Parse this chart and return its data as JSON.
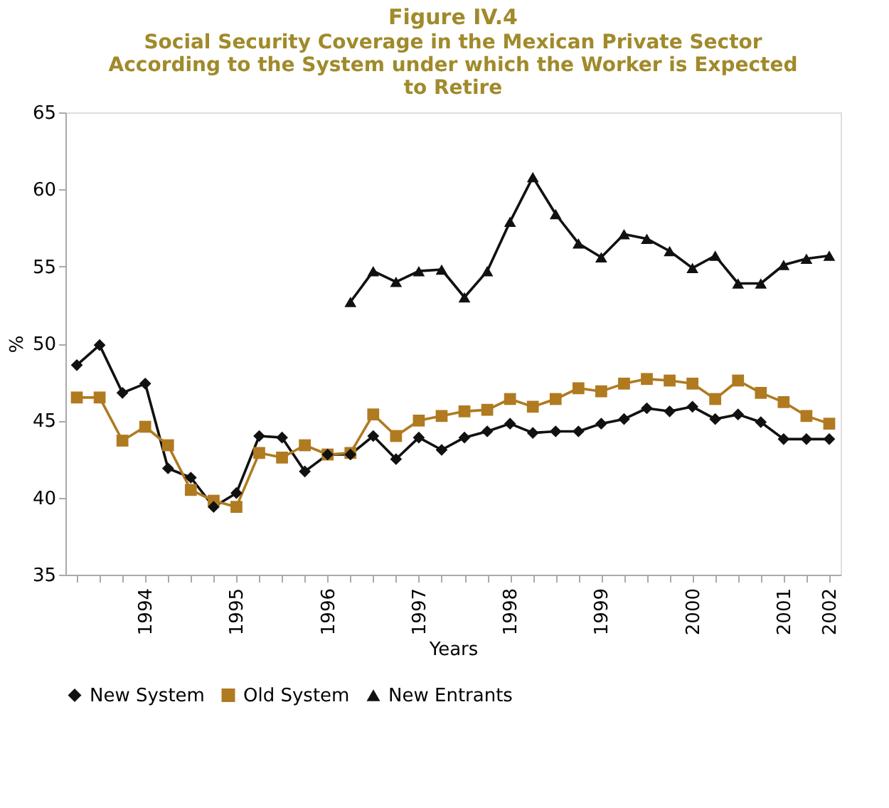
{
  "chart_data": {
    "type": "line",
    "title": "Figure IV.4",
    "subtitle": "Social Security Coverage in the Mexican Private Sector According to the System under which the Worker is Expected to Retire",
    "xlabel": "Years",
    "ylabel": "%",
    "categories": [
      null,
      null,
      null,
      "1994",
      null,
      null,
      null,
      "1995",
      null,
      null,
      null,
      "1996",
      null,
      null,
      null,
      "1997",
      null,
      null,
      null,
      "1998",
      null,
      null,
      null,
      "1999",
      null,
      null,
      null,
      "2000",
      null,
      null,
      null,
      "2001",
      null,
      "2002"
    ],
    "series": [
      {
        "name": "New System",
        "color": "#111111",
        "marker": "diamond",
        "values": [
          48.6,
          49.9,
          46.8,
          47.4,
          41.9,
          41.3,
          39.4,
          40.3,
          44.0,
          43.9,
          41.7,
          42.8,
          42.8,
          44.0,
          42.5,
          43.9,
          43.1,
          43.9,
          44.3,
          44.8,
          44.2,
          44.3,
          44.3,
          44.8,
          45.1,
          45.8,
          45.6,
          45.9,
          45.1,
          45.4,
          44.9,
          43.8,
          43.8,
          43.8
        ]
      },
      {
        "name": "Old System",
        "color": "#b07a20",
        "marker": "square",
        "values": [
          46.5,
          46.5,
          43.7,
          44.6,
          43.4,
          40.5,
          39.8,
          39.4,
          42.9,
          42.6,
          43.4,
          42.8,
          42.9,
          45.4,
          44.0,
          45.0,
          45.3,
          45.6,
          45.7,
          46.4,
          45.9,
          46.4,
          47.1,
          46.9,
          47.4,
          47.7,
          47.6,
          47.4,
          46.4,
          47.6,
          46.8,
          46.2,
          45.3,
          44.8
        ]
      },
      {
        "name": "New Entrants",
        "color": "#111111",
        "marker": "triangle",
        "values": [
          null,
          null,
          null,
          null,
          null,
          null,
          null,
          null,
          null,
          null,
          null,
          null,
          52.7,
          54.7,
          54.0,
          54.7,
          54.8,
          53.0,
          54.7,
          57.9,
          60.8,
          58.4,
          56.5,
          55.6,
          57.1,
          56.8,
          56.0,
          54.9,
          55.7,
          53.9,
          53.9,
          55.1,
          55.5,
          55.7
        ]
      }
    ],
    "ylim": [
      35,
      65
    ],
    "yticks": [
      35,
      40,
      45,
      50,
      55,
      60,
      65
    ],
    "grid": false,
    "legend": "bottom",
    "line_style": "solid"
  }
}
